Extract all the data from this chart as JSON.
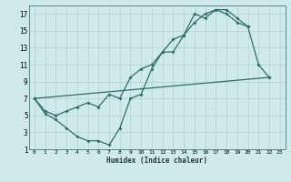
{
  "title": "",
  "xlabel": "Humidex (Indice chaleur)",
  "bg_color": "#ceeaea",
  "grid_color": "#b8d4d4",
  "line_color": "#2e6e65",
  "line1_x": [
    0,
    1,
    2,
    3,
    4,
    5,
    6,
    7,
    8,
    9,
    10,
    11,
    12,
    13,
    14,
    15,
    16,
    17,
    18,
    19,
    20,
    21,
    22
  ],
  "line1_y": [
    7,
    5.2,
    4.5,
    3.5,
    2.5,
    2.0,
    2.0,
    1.5,
    3.5,
    7.0,
    7.5,
    10.5,
    12.5,
    12.5,
    14.5,
    17.0,
    16.5,
    17.5,
    17.5,
    16.5,
    15.5,
    11.0,
    9.5
  ],
  "line2_x": [
    0,
    1,
    2,
    3,
    4,
    5,
    6,
    7,
    8,
    9,
    10,
    11,
    12,
    13,
    14,
    15,
    16,
    17,
    18,
    19,
    20
  ],
  "line2_y": [
    7.0,
    5.5,
    5.0,
    5.5,
    6.0,
    6.5,
    6.0,
    7.5,
    7.0,
    9.5,
    10.5,
    11.0,
    12.5,
    14.0,
    14.5,
    16.0,
    17.0,
    17.5,
    17.0,
    16.0,
    15.5
  ],
  "line3_x": [
    0,
    22
  ],
  "line3_y": [
    7.0,
    9.5
  ],
  "xlim": [
    -0.5,
    23.5
  ],
  "ylim": [
    1,
    18
  ],
  "xticks": [
    0,
    1,
    2,
    3,
    4,
    5,
    6,
    7,
    8,
    9,
    10,
    11,
    12,
    13,
    14,
    15,
    16,
    17,
    18,
    19,
    20,
    21,
    22,
    23
  ],
  "yticks": [
    1,
    3,
    5,
    7,
    9,
    11,
    13,
    15,
    17
  ]
}
